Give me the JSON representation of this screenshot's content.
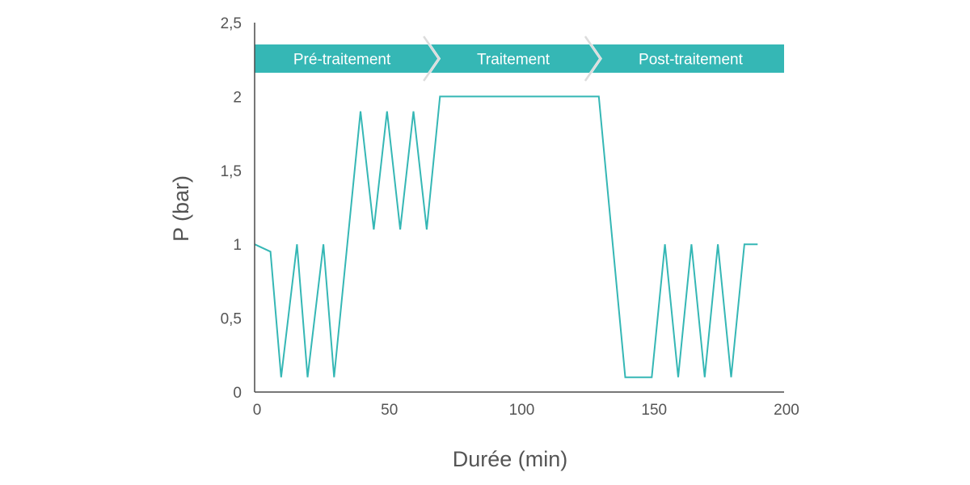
{
  "chart_data": {
    "type": "line",
    "xlabel": "Durée (min)",
    "ylabel": "P (bar)",
    "xlim": [
      0,
      200
    ],
    "ylim": [
      0,
      2.5
    ],
    "x_ticks": [
      {
        "value": 0,
        "label": "0"
      },
      {
        "value": 50,
        "label": "50"
      },
      {
        "value": 100,
        "label": "100"
      },
      {
        "value": 150,
        "label": "150"
      },
      {
        "value": 200,
        "label": "200"
      }
    ],
    "y_ticks": [
      {
        "value": 0,
        "label": "0"
      },
      {
        "value": 0.5,
        "label": "0,5"
      },
      {
        "value": 1,
        "label": "1"
      },
      {
        "value": 1.5,
        "label": "1,5"
      },
      {
        "value": 2,
        "label": "2"
      },
      {
        "value": 2.5,
        "label": "2,5"
      }
    ],
    "grid": false,
    "line_color": "#35b7b5",
    "phase_color": "#35b7b5",
    "phases": [
      {
        "label": "Pré-traitement",
        "start": 0,
        "end": 66
      },
      {
        "label": "Traitement",
        "start": 66,
        "end": 127
      },
      {
        "label": "Post-traitement",
        "start": 127,
        "end": 200
      }
    ],
    "series": [
      {
        "x": [
          0,
          6,
          10,
          16,
          20,
          26,
          30,
          40,
          45,
          50,
          55,
          60,
          65,
          70,
          130,
          140,
          150,
          155,
          160,
          165,
          170,
          175,
          180,
          185,
          190
        ],
        "y": [
          1.0,
          0.95,
          0.1,
          1.0,
          0.1,
          1.0,
          0.1,
          1.9,
          1.1,
          1.9,
          1.1,
          1.9,
          1.1,
          2.0,
          2.0,
          0.1,
          0.1,
          1.0,
          0.1,
          1.0,
          0.1,
          1.0,
          0.1,
          1.0,
          1.0
        ]
      }
    ]
  }
}
